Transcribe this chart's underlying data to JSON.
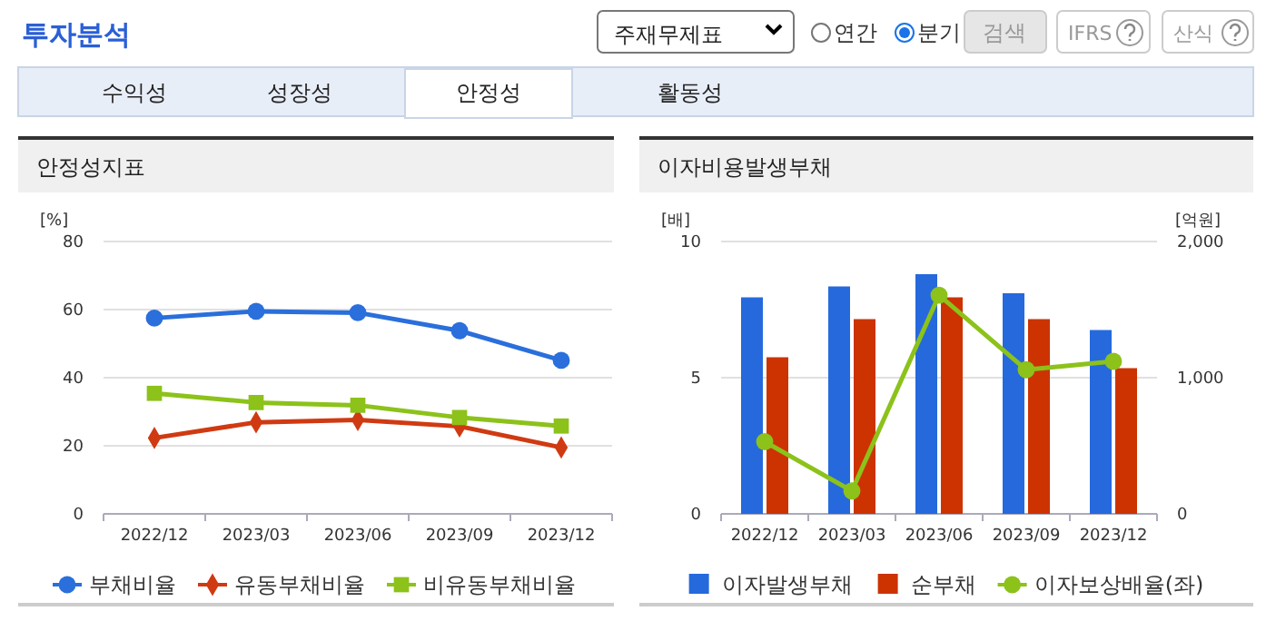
{
  "chart_data": [
    {
      "type": "line",
      "title": "안정성지표",
      "ylabel": "[%]",
      "categories": [
        "2022/12",
        "2023/03",
        "2023/06",
        "2023/09",
        "2023/12"
      ],
      "ylim": [
        0,
        80
      ],
      "yticks": [
        0,
        20,
        40,
        60,
        80
      ],
      "grid": "y",
      "legend": "bottom",
      "series": [
        {
          "name": "부채비율",
          "color": "#2a6fdb",
          "marker": "circle",
          "values": [
            57.5,
            59.5,
            59.1,
            53.8,
            45.1
          ]
        },
        {
          "name": "유동부채비율",
          "color": "#d03a12",
          "marker": "diamond",
          "values": [
            22.3,
            26.9,
            27.6,
            25.7,
            19.5
          ]
        },
        {
          "name": "비유동부채비율",
          "color": "#8cc21a",
          "marker": "square",
          "values": [
            35.4,
            32.7,
            31.9,
            28.3,
            25.8
          ]
        }
      ],
      "annotations": [
        "투자분석",
        "주재무제표",
        "연간",
        "분기",
        "검색",
        "IFRS",
        "산식",
        "수익성",
        "성장성",
        "안정성",
        "활동성"
      ]
    },
    {
      "type": "bar",
      "title": "이자비용발생부채",
      "ylabel": "[배]",
      "y2label": "[억원]",
      "categories": [
        "2022/12",
        "2023/03",
        "2023/06",
        "2023/09",
        "2023/12"
      ],
      "ylim": [
        0,
        10
      ],
      "yticks": [
        0,
        5,
        10
      ],
      "y2lim": [
        0,
        2000
      ],
      "y2ticks": [
        0,
        {
          "value": 1000,
          "label": "1,000"
        },
        {
          "value": 2000,
          "label": "2,000"
        }
      ],
      "grid": "y",
      "legend": "bottom",
      "series": [
        {
          "name": "이자발생부채",
          "type": "bar",
          "axis": "y2",
          "color": "#2569dd",
          "values": [
            1590,
            1670,
            1760,
            1620,
            1350
          ]
        },
        {
          "name": "순부채",
          "type": "bar",
          "axis": "y2",
          "color": "#cc3300",
          "values": [
            1150,
            1430,
            1590,
            1430,
            1070
          ]
        },
        {
          "name": "이자보상배율(좌)",
          "type": "line",
          "axis": "y",
          "color": "#8cc21a",
          "marker": "circle",
          "values": [
            2.65,
            0.84,
            8.03,
            5.29,
            5.6
          ]
        }
      ]
    }
  ]
}
